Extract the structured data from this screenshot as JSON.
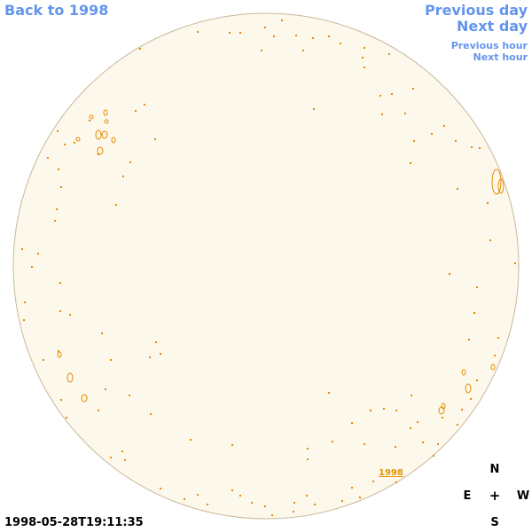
{
  "nav": {
    "back_label": "Back to 1998",
    "prev_day_label": "Previous day",
    "next_day_label": "Next day",
    "prev_hour_label": "Previous hour",
    "next_hour_label": "Next hour",
    "link_color": "#6495ed"
  },
  "disk": {
    "fill_color": "#fdf8ec",
    "edge_color": "#c8b89a",
    "contour_color": "#e68a00"
  },
  "year_mark": "1998",
  "timestamp": "1998-05-28T19:11:35",
  "compass": {
    "north": "N",
    "south": "S",
    "east": "E",
    "west": "W",
    "center": "+"
  }
}
